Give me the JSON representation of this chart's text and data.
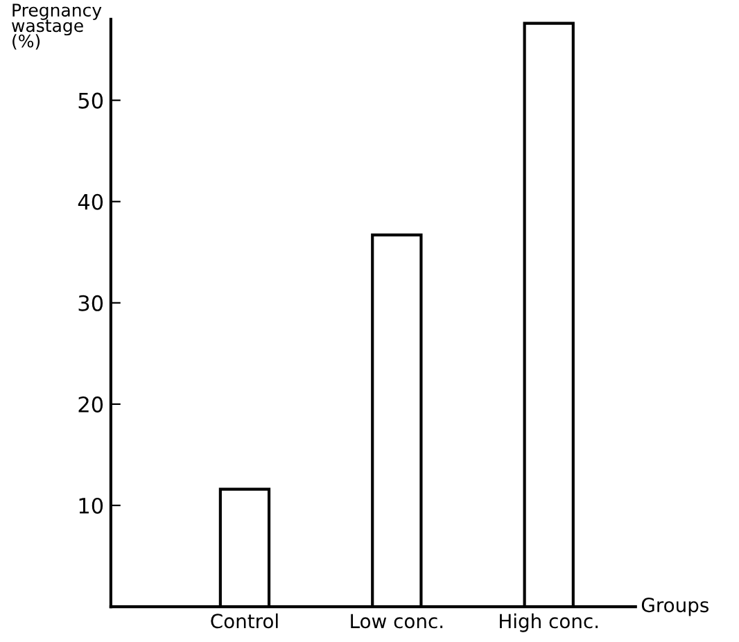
{
  "chart_data": {
    "type": "bar",
    "xlabel": "Groups",
    "ylabel": "Pregnancy\nwastage\n(%)",
    "categories": [
      "Control",
      "Low conc.",
      "High conc."
    ],
    "values": [
      11.6,
      36.7,
      57.6
    ],
    "color": "#ffffff",
    "ylim": [
      0,
      58
    ],
    "yticks": [
      10,
      20,
      30,
      40,
      50
    ],
    "grid": false
  }
}
